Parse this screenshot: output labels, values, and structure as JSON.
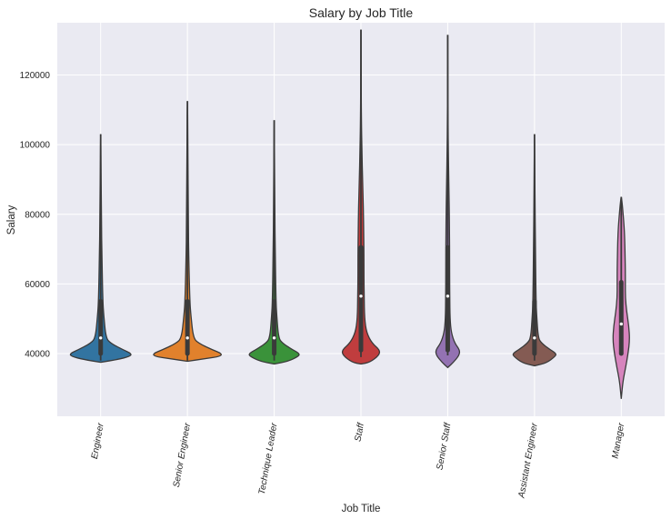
{
  "chart_data": {
    "type": "violin",
    "title": "Salary by Job Title",
    "xlabel": "Job Title",
    "ylabel": "Salary",
    "ylim": [
      22000,
      135000
    ],
    "yticks": [
      40000,
      60000,
      80000,
      100000,
      120000
    ],
    "yticklabels": [
      "40000",
      "60000",
      "80000",
      "100000",
      "120000"
    ],
    "grid": true,
    "categories": [
      "Engineer",
      "Senior Engineer",
      "Technique Leader",
      "Staff",
      "Senior Staff",
      "Assistant Engineer",
      "Manager"
    ],
    "series": [
      {
        "category": "Engineer",
        "color": "#3274a1",
        "min": 38000,
        "q1": 40000,
        "median": 44500,
        "q3": 55000,
        "whisker_high": 78000,
        "max": 103000,
        "extent_low": 37500
      },
      {
        "category": "Senior Engineer",
        "color": "#e1812c",
        "min": 38000,
        "q1": 40000,
        "median": 44500,
        "q3": 55000,
        "whisker_high": 77000,
        "max": 112500,
        "extent_low": 37800
      },
      {
        "category": "Technique Leader",
        "color": "#3a923a",
        "min": 38000,
        "q1": 40000,
        "median": 44500,
        "q3": 55000,
        "whisker_high": 80000,
        "max": 107000,
        "extent_low": 37000
      },
      {
        "category": "Staff",
        "color": "#c03d3e",
        "min": 39000,
        "q1": 41000,
        "median": 56500,
        "q3": 70500,
        "whisker_high": 99000,
        "max": 133000,
        "extent_low": 37000
      },
      {
        "category": "Senior Staff",
        "color": "#9372b2",
        "min": 39500,
        "q1": 41000,
        "median": 56500,
        "q3": 70500,
        "whisker_high": 115000,
        "max": 131500,
        "extent_low": 36000
      },
      {
        "category": "Assistant Engineer",
        "color": "#845b53",
        "min": 38000,
        "q1": 40000,
        "median": 44500,
        "q3": 55000,
        "whisker_high": 83000,
        "max": 103000,
        "extent_low": 36500
      },
      {
        "category": "Manager",
        "color": "#d684bd",
        "min": 40000,
        "q1": 40000,
        "median": 48500,
        "q3": 60500,
        "whisker_high": 72500,
        "max": 85000,
        "extent_low": 27000
      }
    ]
  }
}
